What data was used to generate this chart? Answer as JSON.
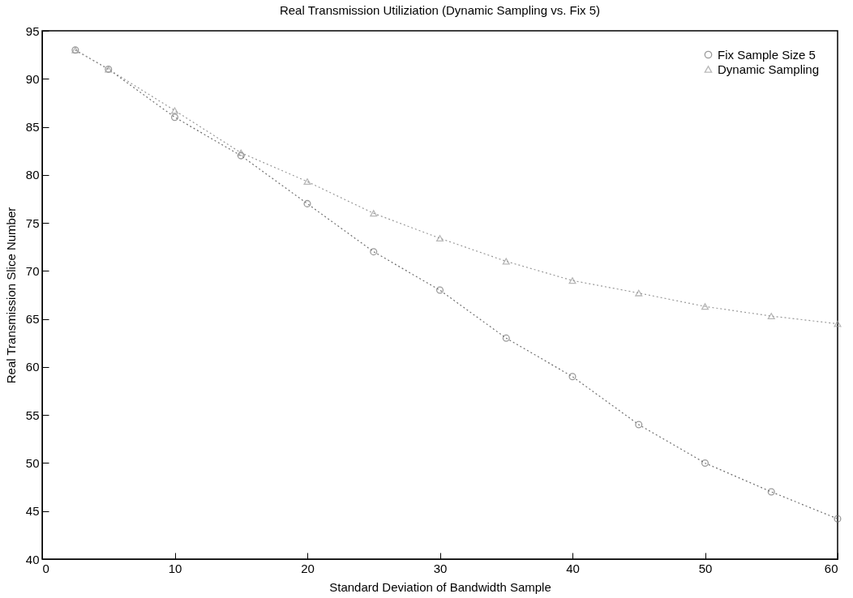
{
  "chart_data": {
    "type": "line",
    "title": "Real Transmission Utiliziation (Dynamic Sampling vs. Fix 5)",
    "xlabel": "Standard Deviation of Bandwidth Sample",
    "ylabel": "Real Transmission Slice Number",
    "x": [
      2.5,
      5,
      10,
      15,
      20,
      25,
      30,
      35,
      40,
      45,
      50,
      55,
      60
    ],
    "series": [
      {
        "name": "Fix Sample Size 5",
        "color": "#707070",
        "marker": "circle",
        "values": [
          93,
          91,
          86,
          82,
          77,
          72,
          68,
          63,
          59,
          54,
          50,
          47,
          44.2
        ]
      },
      {
        "name": "Dynamic Sampling",
        "color": "#9a9a9a",
        "marker": "triangle",
        "values": [
          93,
          91,
          86.7,
          82.3,
          79.3,
          76,
          73.4,
          71,
          69,
          67.7,
          66.3,
          65.3,
          64.5
        ]
      }
    ],
    "xlim": [
      0,
      60
    ],
    "xticks": [
      0,
      10,
      20,
      30,
      40,
      50,
      60
    ],
    "ylim": [
      40,
      95
    ],
    "yticks": [
      40,
      45,
      50,
      55,
      60,
      65,
      70,
      75,
      80,
      85,
      90,
      95
    ],
    "legend": "top right",
    "line_style": "dotted",
    "grid": false
  }
}
